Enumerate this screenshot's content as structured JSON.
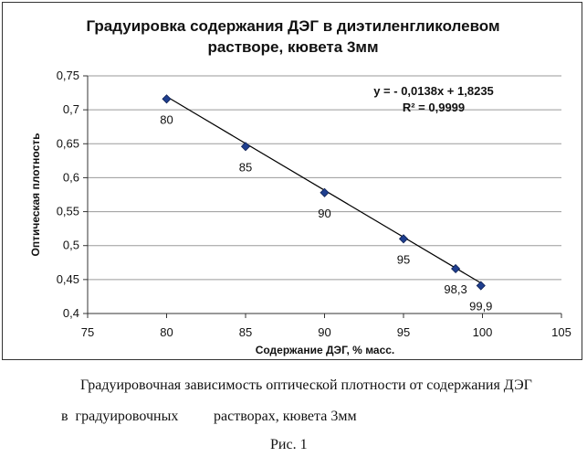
{
  "chart_data": {
    "type": "scatter",
    "title_lines": [
      "Градуировка содержания ДЭГ в диэтиленгликолевом",
      "растворе, кювета 3мм"
    ],
    "xlabel": "Содержание ДЭГ, % масс.",
    "ylabel": "Оптическая плотность",
    "xlim": [
      75,
      105
    ],
    "ylim": [
      0.4,
      0.75
    ],
    "x_ticks": [
      75,
      80,
      85,
      90,
      95,
      100,
      105
    ],
    "x_tick_labels": [
      "75",
      "80",
      "85",
      "90",
      "95",
      "100",
      "105"
    ],
    "y_ticks": [
      0.4,
      0.45,
      0.5,
      0.55,
      0.6,
      0.65,
      0.7,
      0.75
    ],
    "y_tick_labels": [
      "0,4",
      "0,45",
      "0,5",
      "0,55",
      "0,6",
      "0,65",
      "0,7",
      "0,75"
    ],
    "grid": "horizontal",
    "points": [
      {
        "x": 80,
        "y": 0.716,
        "label": "80"
      },
      {
        "x": 85,
        "y": 0.646,
        "label": "85"
      },
      {
        "x": 90,
        "y": 0.578,
        "label": "90"
      },
      {
        "x": 95,
        "y": 0.51,
        "label": "95"
      },
      {
        "x": 98.3,
        "y": 0.466,
        "label": "98,3"
      },
      {
        "x": 99.9,
        "y": 0.441,
        "label": "99,9"
      }
    ],
    "trendline": {
      "slope": -0.0138,
      "intercept": 1.8235,
      "x_range": [
        80,
        99.9
      ]
    },
    "equation": "y = - 0,0138x + 1,8235",
    "r_squared": "R² = 0,9999",
    "marker_color": "#1f3f8f",
    "line_color": "#000000"
  },
  "caption": {
    "line1": "Градуировочная зависимость оптической плотности от содержания ДЭГ",
    "line2_part1": "в  градуировочных",
    "line2_part2": "растворах, кювета 3мм",
    "figure_label": "Рис. 1"
  }
}
